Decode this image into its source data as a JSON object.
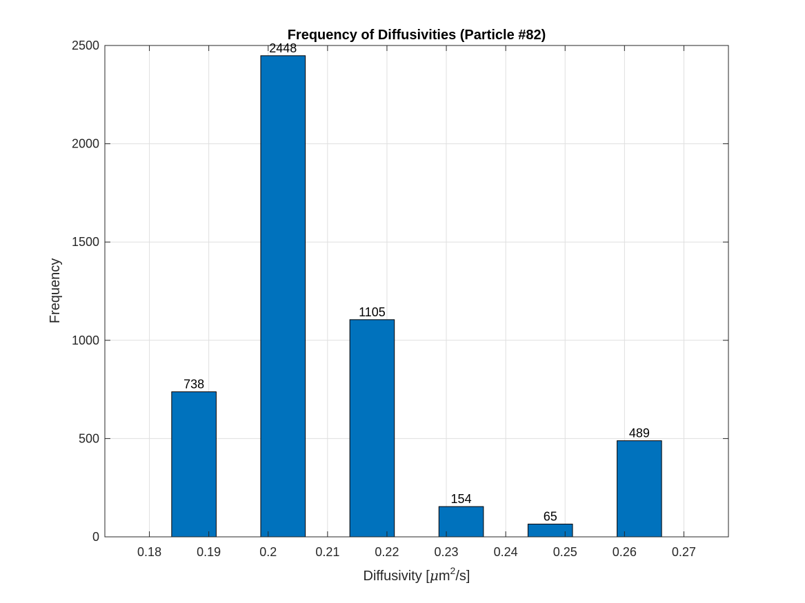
{
  "chart_data": {
    "type": "bar",
    "title": "Frequency of Diffusivities (Particle #82)",
    "xlabel": {
      "prefix": "Diffusivity [",
      "mu": "μ",
      "unit_base": "m",
      "superscript": "2",
      "suffix": "/s]"
    },
    "ylabel": "Frequency",
    "x": [
      0.1875,
      0.2025,
      0.2175,
      0.2325,
      0.2475,
      0.2625
    ],
    "values": [
      738,
      2448,
      1105,
      154,
      65,
      489
    ],
    "bar_width": 0.0075,
    "data_labels": [
      "738",
      "2448",
      "1105",
      "154",
      "65",
      "489"
    ],
    "xlim": [
      0.1725,
      0.2775
    ],
    "ylim": [
      0,
      2500
    ],
    "xticks": [
      0.18,
      0.19,
      0.2,
      0.21,
      0.22,
      0.23,
      0.24,
      0.25,
      0.26,
      0.27
    ],
    "xtick_labels": [
      "0.18",
      "0.19",
      "0.2",
      "0.21",
      "0.22",
      "0.23",
      "0.24",
      "0.25",
      "0.26",
      "0.27"
    ],
    "yticks": [
      0,
      500,
      1000,
      1500,
      2000,
      2500
    ],
    "ytick_labels": [
      "0",
      "500",
      "1000",
      "1500",
      "2000",
      "2500"
    ],
    "grid": true,
    "legend": "none",
    "bar_color": "#0072BD",
    "bar_edge_color": "#000000",
    "grid_color": "#dfdfdf",
    "axis_color": "#262626"
  }
}
